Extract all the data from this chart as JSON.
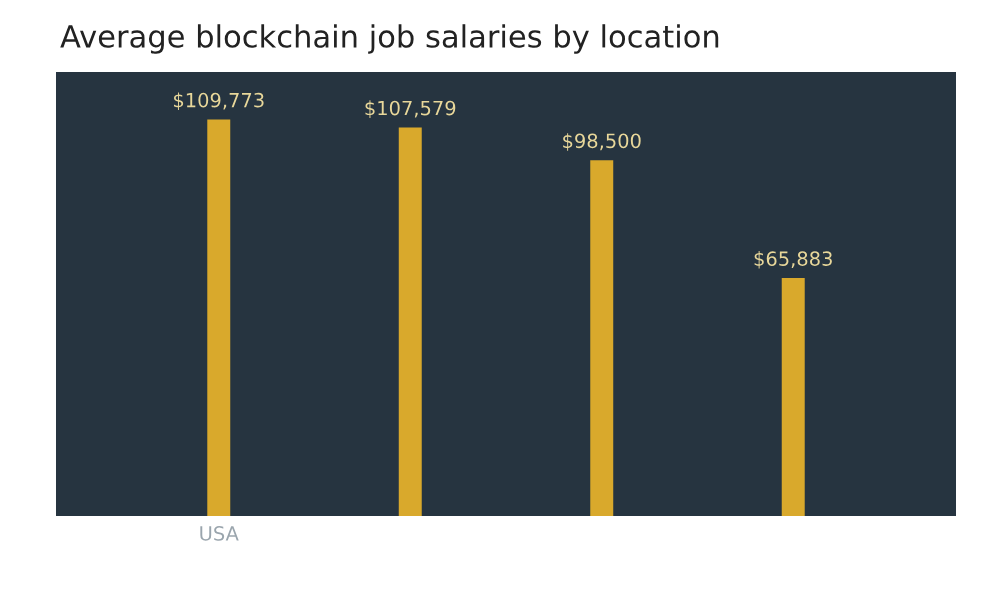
{
  "chart_data": {
    "type": "bar",
    "title": "Average blockchain job salaries by location",
    "categories": [
      "USA",
      null,
      null,
      null
    ],
    "values": [
      109773,
      107579,
      98500,
      65883
    ],
    "value_labels": [
      "$109,773",
      "$107,579",
      "$98,500",
      "$65,883"
    ],
    "color": "#d9a92c",
    "grid": false
  }
}
